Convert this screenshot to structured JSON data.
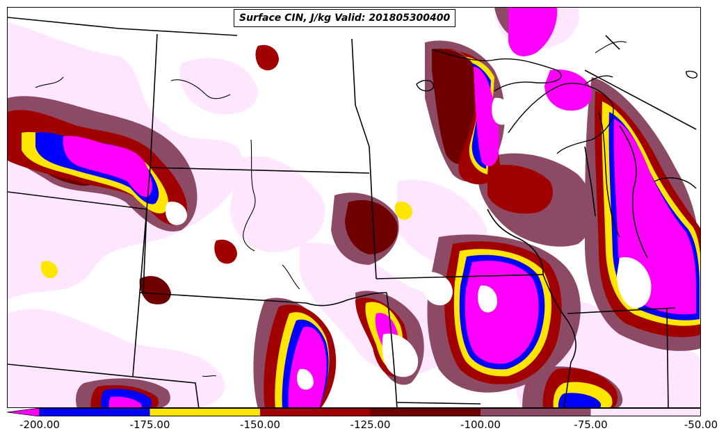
{
  "title": "Surface CIN, J/kg Valid: 201805300400",
  "colorbar": {
    "bins": [
      {
        "from": -200,
        "to": -175,
        "color": "#0000ff"
      },
      {
        "from": -175,
        "to": -150,
        "color": "#ffe600"
      },
      {
        "from": -150,
        "to": -125,
        "color": "#a00000"
      },
      {
        "from": -125,
        "to": -100,
        "color": "#6e0000"
      },
      {
        "from": -100,
        "to": -75,
        "color": "#8c4a64"
      },
      {
        "from": -75,
        "to": -50,
        "color": "#ffe6ff"
      }
    ],
    "below_min_color": "#ff00ff",
    "tick_labels": [
      "-200.00",
      "-175.00",
      "-150.00",
      "-125.00",
      "-100.00",
      "-75.00",
      "-50.00"
    ]
  },
  "colors": {
    "magenta": "#ff00ff",
    "blue": "#0000ff",
    "yellow": "#ffe600",
    "red": "#a00000",
    "darkred": "#6e0000",
    "mauve": "#8c4a64",
    "pink": "#ffe6ff"
  }
}
